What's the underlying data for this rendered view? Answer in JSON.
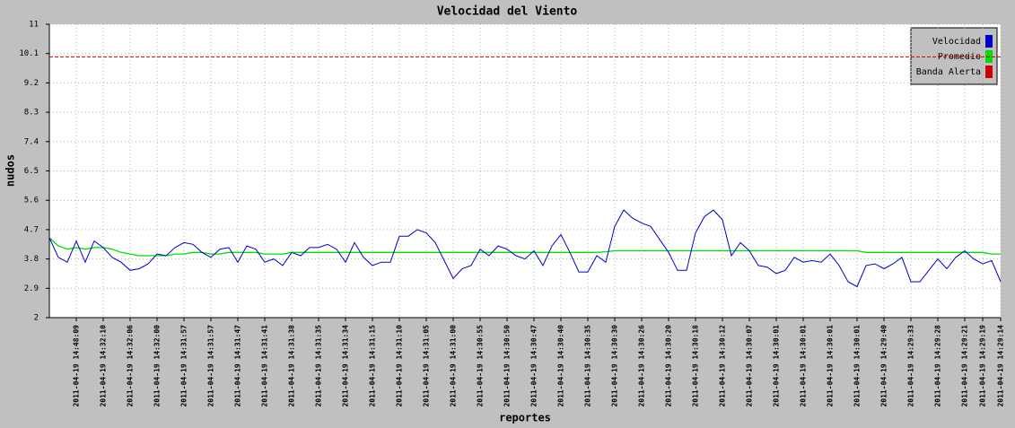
{
  "chart_data": {
    "type": "line",
    "title": "Velocidad del Viento",
    "x_label": "reportes",
    "y_label": "nudos",
    "ylim": [
      2,
      11
    ],
    "yticks": [
      2,
      2.9,
      3.8,
      4.7,
      5.6,
      6.5,
      7.4,
      8.3,
      9.2,
      10.1,
      11
    ],
    "grid": true,
    "legend": "top-right",
    "categories": [
      null,
      null,
      null,
      "2011-04-19 14:48:09",
      null,
      null,
      "2011-04-19 14:32:10",
      null,
      null,
      "2011-04-19 14:32:06",
      null,
      null,
      "2011-04-19 14:32:00",
      null,
      null,
      "2011-04-19 14:31:57",
      null,
      null,
      "2011-04-19 14:31:57",
      null,
      null,
      "2011-04-19 14:31:47",
      null,
      null,
      "2011-04-19 14:31:41",
      null,
      null,
      "2011-04-19 14:31:38",
      null,
      null,
      "2011-04-19 14:31:35",
      null,
      null,
      "2011-04-19 14:31:34",
      null,
      null,
      "2011-04-19 14:31:15",
      null,
      null,
      "2011-04-19 14:31:10",
      null,
      null,
      "2011-04-19 14:31:05",
      null,
      null,
      "2011-04-19 14:31:00",
      null,
      null,
      "2011-04-19 14:30:55",
      null,
      null,
      "2011-04-19 14:30:50",
      null,
      null,
      "2011-04-19 14:30:47",
      null,
      null,
      "2011-04-19 14:30:40",
      null,
      null,
      "2011-04-19 14:30:35",
      null,
      null,
      "2011-04-19 14:30:30",
      null,
      null,
      "2011-04-19 14:30:26",
      null,
      null,
      "2011-04-19 14:30:20",
      null,
      null,
      "2011-04-19 14:30:18",
      null,
      null,
      "2011-04-19 14:30:12",
      null,
      null,
      "2011-04-19 14:30:07",
      null,
      null,
      "2011-04-19 14:30:01",
      null,
      null,
      "2011-04-19 14:30:01",
      null,
      null,
      "2011-04-19 14:30:01",
      null,
      null,
      "2011-04-19 14:30:01",
      null,
      null,
      "2011-04-19 14:29:40",
      null,
      null,
      "2011-04-19 14:29:33",
      null,
      null,
      "2011-04-19 14:29:28",
      null,
      null,
      "2011-04-19 14:29:21",
      null,
      "2011-04-19 14:29:19",
      null,
      "2011-04-19 14:29:14"
    ],
    "series": [
      {
        "name": "Velocidad",
        "color": "#0000cc",
        "values": [
          4.45,
          3.85,
          3.7,
          4.35,
          3.7,
          4.35,
          4.15,
          3.85,
          3.7,
          3.45,
          3.5,
          3.65,
          3.95,
          3.9,
          4.15,
          4.3,
          4.25,
          4.0,
          3.85,
          4.1,
          4.15,
          3.7,
          4.2,
          4.1,
          3.7,
          3.8,
          3.6,
          4.0,
          3.9,
          4.15,
          4.15,
          4.25,
          4.1,
          3.7,
          4.3,
          3.85,
          3.6,
          3.7,
          3.7,
          4.5,
          4.5,
          4.7,
          4.6,
          4.3,
          3.75,
          3.2,
          3.5,
          3.6,
          4.1,
          3.9,
          4.2,
          4.1,
          3.9,
          3.8,
          4.05,
          3.6,
          4.2,
          4.55,
          4.0,
          3.4,
          3.4,
          3.9,
          3.7,
          4.8,
          5.3,
          5.05,
          4.9,
          4.8,
          4.4,
          4.0,
          3.45,
          3.45,
          4.6,
          5.1,
          5.3,
          5.0,
          3.9,
          4.3,
          4.05,
          3.6,
          3.55,
          3.35,
          3.45,
          3.85,
          3.7,
          3.75,
          3.7,
          3.95,
          3.6,
          3.1,
          2.95,
          3.6,
          3.65,
          3.5,
          3.65,
          3.85,
          3.1,
          3.1,
          3.45,
          3.8,
          3.5,
          3.85,
          4.05,
          3.8,
          3.65,
          3.75,
          3.1
        ]
      },
      {
        "name": "Promedio",
        "color": "#00dd00",
        "values": [
          4.45,
          4.2,
          4.1,
          4.15,
          4.1,
          4.15,
          4.15,
          4.1,
          4.0,
          3.95,
          3.9,
          3.9,
          3.9,
          3.9,
          3.95,
          3.95,
          4.0,
          4.0,
          3.95,
          3.95,
          4.0,
          4.0,
          4.0,
          4.0,
          3.95,
          3.95,
          3.95,
          4.0,
          4.0,
          4.0,
          4.0,
          4.0,
          4.0,
          4.0,
          4.0,
          4.0,
          4.0,
          4.0,
          4.0,
          4.0,
          4.0,
          4.0,
          4.0,
          4.0,
          4.0,
          4.0,
          4.0,
          4.0,
          4.0,
          4.0,
          4.0,
          4.0,
          4.0,
          4.0,
          4.0,
          4.0,
          4.0,
          4.0,
          4.0,
          4.0,
          4.0,
          4.0,
          4.02,
          4.05,
          4.05,
          4.05,
          4.05,
          4.05,
          4.05,
          4.05,
          4.05,
          4.05,
          4.05,
          4.05,
          4.05,
          4.05,
          4.05,
          4.05,
          4.05,
          4.05,
          4.05,
          4.05,
          4.05,
          4.05,
          4.05,
          4.05,
          4.05,
          4.05,
          4.05,
          4.05,
          4.05,
          4.0,
          4.0,
          4.0,
          4.0,
          4.0,
          4.0,
          4.0,
          4.0,
          4.0,
          4.0,
          4.0,
          4.0,
          4.0,
          4.0,
          3.95,
          3.95
        ]
      }
    ],
    "alert": {
      "name": "Banda Alerta",
      "color": "#cc0000",
      "value": 10
    }
  }
}
